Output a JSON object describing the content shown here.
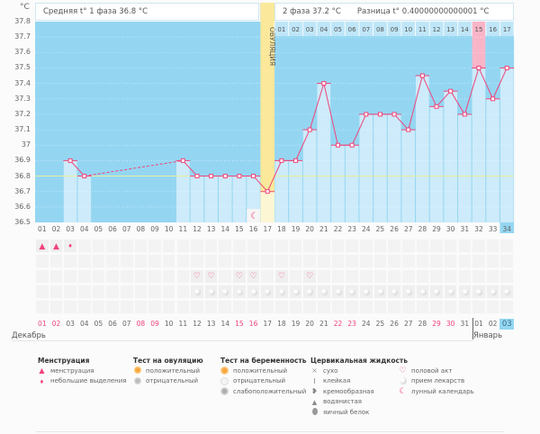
{
  "header": {
    "unit": "°C",
    "phase1_label": "Средняя t° 1 фаза 36.8 °C",
    "phase2_label": "2 фаза 37.2 °C",
    "difference_label": "Разница t° 0.40000000000001 °C",
    "ovulation_label": "ОВУЛЯЦИЯ"
  },
  "colors": {
    "chart_bg": "#94d6f2",
    "bar_fill": "#cdebfa",
    "line": "#f0447a",
    "ovulation": "#fbe89a",
    "coverline": "#e8f0a0",
    "highlight_pink": "#f9b5c8",
    "weekend": "#f0447a"
  },
  "phase2_days": [
    "01",
    "02",
    "03",
    "04",
    "05",
    "06",
    "07",
    "08",
    "09",
    "10",
    "11",
    "12",
    "13",
    "14",
    "15",
    "16",
    "17"
  ],
  "phase2_highlight_index": 14,
  "chart_data": {
    "type": "line",
    "title": "",
    "xlabel": "",
    "ylabel": "°C",
    "ylim": [
      36.5,
      37.8
    ],
    "yticks": [
      "37.8",
      "37.7",
      "37.6",
      "37.5",
      "37.4",
      "37.3",
      "37.2",
      "37.1",
      "37",
      "36.9",
      "36.8",
      "36.7",
      "36.6",
      "36.5"
    ],
    "coverline": 36.8,
    "ovulation_day": 17,
    "x": [
      "01",
      "02",
      "03",
      "04",
      "05",
      "06",
      "07",
      "08",
      "09",
      "10",
      "11",
      "12",
      "13",
      "14",
      "15",
      "16",
      "17",
      "18",
      "19",
      "20",
      "21",
      "22",
      "23",
      "24",
      "25",
      "26",
      "27",
      "28",
      "29",
      "30",
      "31",
      "32",
      "33",
      "34"
    ],
    "series": [
      {
        "name": "temperature",
        "values": [
          null,
          null,
          36.9,
          36.8,
          null,
          null,
          null,
          null,
          null,
          null,
          36.9,
          36.8,
          36.8,
          36.8,
          36.8,
          36.8,
          36.7,
          36.9,
          36.9,
          37.1,
          37.4,
          37.0,
          37.0,
          37.2,
          37.2,
          37.2,
          37.1,
          37.45,
          37.25,
          37.35,
          37.2,
          37.5,
          37.3,
          37.5
        ]
      }
    ],
    "current_day": "34"
  },
  "rows": {
    "menstruation": {
      "01": "heavy",
      "02": "heavy",
      "03": "light"
    },
    "intercourse_days": [
      "12",
      "13",
      "15",
      "16",
      "18",
      "20"
    ],
    "medication_start": 12,
    "moon_day": 16
  },
  "calendar": {
    "dates": [
      "01",
      "02",
      "03",
      "04",
      "05",
      "06",
      "07",
      "08",
      "09",
      "10",
      "11",
      "12",
      "13",
      "14",
      "15",
      "16",
      "17",
      "18",
      "19",
      "20",
      "21",
      "22",
      "23",
      "24",
      "25",
      "26",
      "27",
      "28",
      "29",
      "30",
      "31",
      "01",
      "02",
      "03"
    ],
    "weekend_indices": [
      0,
      1,
      7,
      8,
      14,
      15,
      21,
      22,
      28,
      29
    ],
    "today_index": 33,
    "month1": "Декабрь",
    "month2": "Январь",
    "month_break_index": 31
  },
  "legend": {
    "groups": [
      {
        "title": "Менструация",
        "items": [
          {
            "icon": "drop-heavy-icon",
            "label": "менструация"
          },
          {
            "icon": "drop-light-icon",
            "label": "небольшие выделения"
          }
        ]
      },
      {
        "title": "Тест на овуляцию",
        "items": [
          {
            "icon": "sun-positive-icon",
            "label": "положительный"
          },
          {
            "icon": "sun-negative-icon",
            "label": "отрицательный"
          }
        ]
      },
      {
        "title": "Тест на беременность",
        "items": [
          {
            "icon": "preg-positive-icon",
            "label": "положительный"
          },
          {
            "icon": "preg-negative-icon",
            "label": "отрицательный"
          },
          {
            "icon": "preg-weak-icon",
            "label": "слабоположительный"
          }
        ]
      },
      {
        "title": "Цервикальная жидкость",
        "items": [
          {
            "icon": "dry-icon",
            "label": "сухо"
          },
          {
            "icon": "sticky-icon",
            "label": "клейкая"
          },
          {
            "icon": "creamy-icon",
            "label": "кремообразная"
          },
          {
            "icon": "watery-icon",
            "label": "водянистая"
          },
          {
            "icon": "eggwhite-icon",
            "label": "яичный белок"
          }
        ]
      },
      {
        "title": "",
        "items": [
          {
            "icon": "heart-icon",
            "label": "половой акт"
          },
          {
            "icon": "pill-icon",
            "label": "прием лекарств"
          },
          {
            "icon": "moon-icon",
            "label": "лунный календарь"
          }
        ]
      }
    ]
  }
}
